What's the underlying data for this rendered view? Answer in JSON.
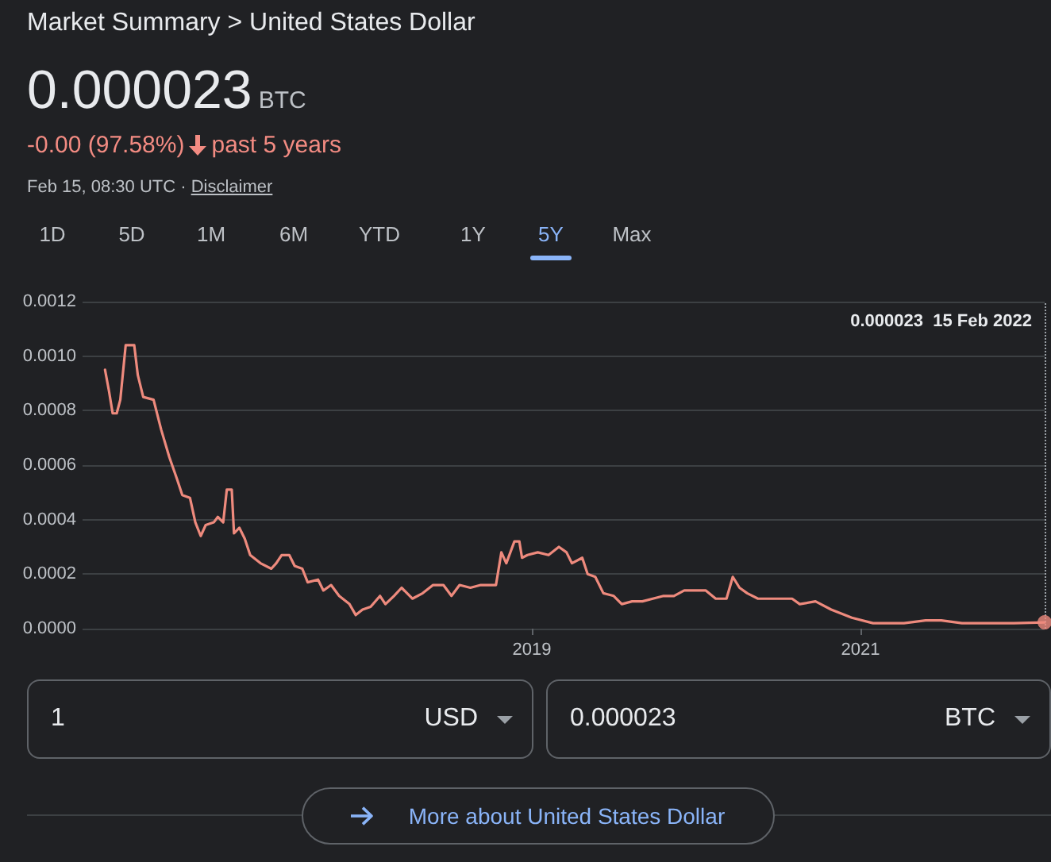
{
  "chart_data": {
    "type": "line",
    "title": "Market Summary > United States Dollar",
    "annotations": [
      "0.000023",
      "BTC",
      "-0.00 (97.58%)",
      "past 5 years",
      "Feb 15, 08:30 UTC · ",
      "Disclaimer",
      "1D",
      "5D",
      "1M",
      "6M",
      "YTD",
      "1Y",
      "5Y",
      "Max",
      "1",
      "USD",
      "0.000023",
      "BTC",
      "More about United States Dollar",
      "0.000023  15 Feb 2022"
    ],
    "series": [
      {
        "color": "#ee8a7d",
        "x": [
          "2016-05-26",
          "2016-06-04",
          "2016-06-12",
          "2016-06-21",
          "2016-06-29",
          "2016-07-11",
          "2016-07-30",
          "2016-08-07",
          "2016-08-19",
          "2016-09-11",
          "2016-09-28",
          "2016-10-16",
          "2016-11-02",
          "2016-11-14",
          "2016-12-01",
          "2016-12-13",
          "2016-12-25",
          "2017-01-05",
          "2017-01-23",
          "2017-02-01",
          "2017-02-13",
          "2017-02-21",
          "2017-03-04",
          "2017-03-09",
          "2017-03-21",
          "2017-04-02",
          "2017-04-14",
          "2017-05-07",
          "2017-05-31",
          "2017-06-11",
          "2017-06-23",
          "2017-07-10",
          "2017-07-22",
          "2017-08-08",
          "2017-08-20",
          "2017-09-12",
          "2017-09-24",
          "2017-10-11",
          "2017-10-29",
          "2017-11-21",
          "2017-12-05",
          "2017-12-20",
          "2018-01-07",
          "2018-01-28",
          "2018-02-09",
          "2018-02-28",
          "2018-03-17",
          "2018-04-10",
          "2018-05-03",
          "2018-05-26",
          "2018-06-18",
          "2018-07-06",
          "2018-07-24",
          "2018-08-17",
          "2018-09-09",
          "2018-10-13",
          "2018-10-25",
          "2018-11-05",
          "2018-11-23",
          "2018-12-04",
          "2018-12-10",
          "2018-12-22",
          "2019-01-14",
          "2019-02-07",
          "2019-03-02",
          "2019-03-19",
          "2019-03-31",
          "2019-04-23",
          "2019-05-05",
          "2019-05-22",
          "2019-06-09",
          "2019-07-02",
          "2019-07-20",
          "2019-08-12",
          "2019-09-04",
          "2019-09-27",
          "2019-10-21",
          "2019-11-13",
          "2019-12-06",
          "2019-12-30",
          "2020-01-23",
          "2020-02-14",
          "2020-03-09",
          "2020-03-23",
          "2020-04-07",
          "2020-04-24",
          "2020-05-18",
          "2020-07-03",
          "2020-08-02",
          "2020-08-19",
          "2020-09-23",
          "2020-10-28",
          "2020-12-13",
          "2021-01-29",
          "2021-04-08",
          "2021-05-26",
          "2021-06-30",
          "2021-08-15",
          "2021-10-13",
          "2021-12-09",
          "2022-02-15"
        ],
        "values": [
          0.00095,
          0.00087,
          0.00079,
          0.00079,
          0.00084,
          0.00104,
          0.00104,
          0.00093,
          0.00085,
          0.00084,
          0.00073,
          0.00063,
          0.00055,
          0.00049,
          0.00048,
          0.00039,
          0.00034,
          0.00038,
          0.00039,
          0.00041,
          0.00039,
          0.00051,
          0.00051,
          0.00035,
          0.00037,
          0.00033,
          0.00027,
          0.00024,
          0.00022,
          0.00024,
          0.00027,
          0.00027,
          0.00023,
          0.00022,
          0.00017,
          0.00018,
          0.00014,
          0.00016,
          0.00012,
          9e-05,
          5e-05,
          7e-05,
          8e-05,
          0.00012,
          9e-05,
          0.00012,
          0.00015,
          0.00011,
          0.00013,
          0.00016,
          0.00016,
          0.00012,
          0.00016,
          0.00015,
          0.00016,
          0.00016,
          0.00028,
          0.00024,
          0.00032,
          0.00032,
          0.00026,
          0.00027,
          0.00028,
          0.00027,
          0.0003,
          0.00028,
          0.00024,
          0.00026,
          0.0002,
          0.00019,
          0.00013,
          0.00012,
          9e-05,
          0.0001,
          0.0001,
          0.00011,
          0.00012,
          0.00012,
          0.00014,
          0.00014,
          0.00014,
          0.00011,
          0.00011,
          0.00019,
          0.00015,
          0.00013,
          0.00011,
          0.00011,
          0.00011,
          9e-05,
          0.0001,
          7e-05,
          4e-05,
          2e-05,
          2e-05,
          3e-05,
          3e-05,
          2e-05,
          2e-05,
          2e-05,
          2.3e-05
        ]
      },
      {
        "type": "scatter",
        "color": "#ee8a7d",
        "marker": "circle",
        "x": [
          "2022-02-15"
        ],
        "values": [
          2.3e-05
        ]
      }
    ],
    "xlim": [
      "2016-04-06",
      "2022-02-15"
    ],
    "xticks": [
      {
        "value": "2019-01-01",
        "label": "2019"
      },
      {
        "value": "2021-01-01",
        "label": "2021"
      }
    ],
    "ylim": [
      0,
      0.0012
    ],
    "yticks": [
      {
        "value": 0,
        "label": "0.0000"
      },
      {
        "value": 0.0002,
        "label": "0.0002"
      },
      {
        "value": 0.0004,
        "label": "0.0004"
      },
      {
        "value": 0.0006,
        "label": "0.0006"
      },
      {
        "value": 0.0008,
        "label": "0.0008"
      },
      {
        "value": 0.001,
        "label": "0.0010"
      },
      {
        "value": 0.0012,
        "label": "0.0012"
      }
    ],
    "ref_lines": [
      {
        "axis": "x",
        "value": "2022-02-15",
        "line_style": "dotted",
        "color": "#9aa0a6"
      }
    ],
    "grid": "y",
    "marker": "none",
    "line_style": "solid"
  }
}
